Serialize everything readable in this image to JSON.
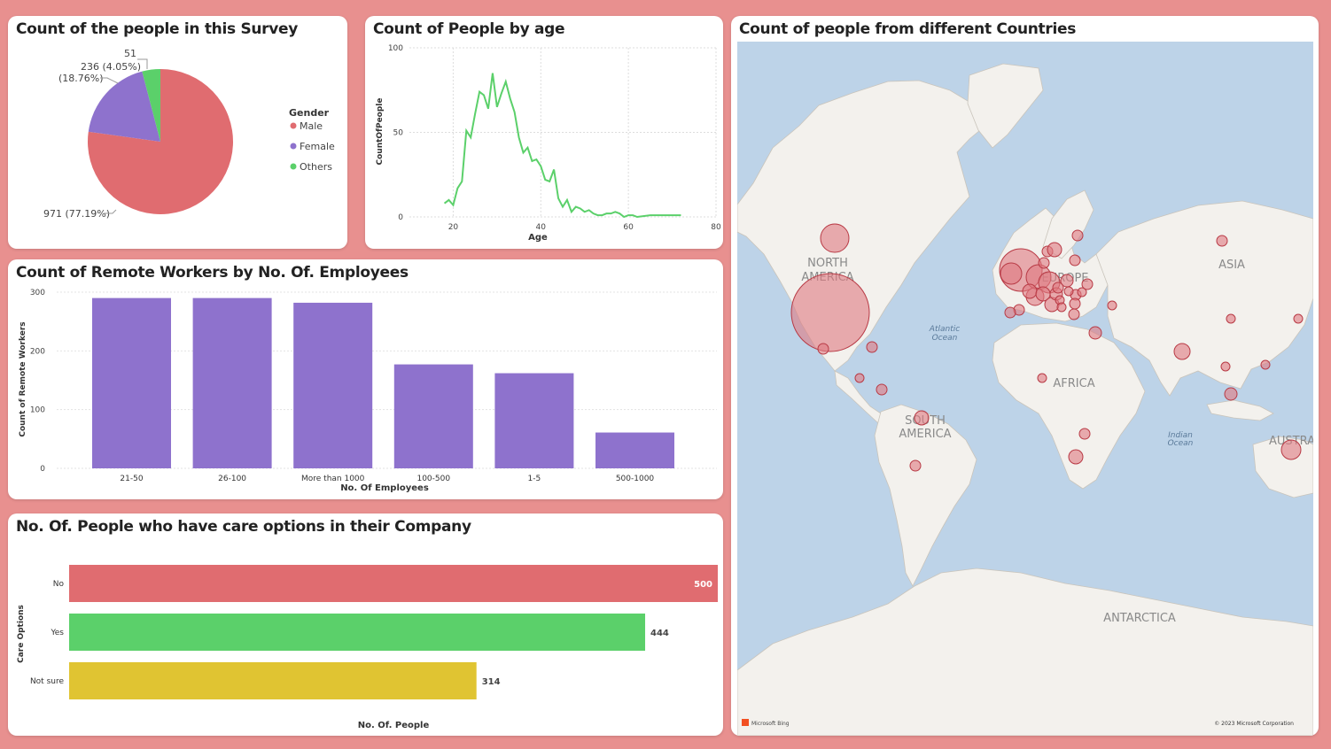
{
  "cards": {
    "pie": {
      "title": "Count of the people in this Survey"
    },
    "line": {
      "title": "Count of People by age"
    },
    "bars": {
      "title": "Count of Remote Workers by No. Of. Employees"
    },
    "care": {
      "title": "No. Of. People who have care options in their Company"
    },
    "map": {
      "title": "Count of people from different Countries"
    }
  },
  "colors": {
    "male": "#e06c70",
    "female": "#8e72cd",
    "others": "#5bd06a",
    "line": "#5bd06a",
    "bar": "#8e72cd",
    "no": "#e06c70",
    "yes": "#5bd06a",
    "not_sure": "#e0c432",
    "ocean": "#bdd3e8",
    "land": "#f3f1ed",
    "bubble": "#e07a80"
  },
  "chart_data": [
    {
      "type": "pie",
      "title": "Count of the people in this Survey",
      "legend_title": "Gender",
      "legend_position": "right",
      "slices": [
        {
          "name": "Male",
          "value": 971,
          "label": "971 (77.19%)"
        },
        {
          "name": "Female",
          "value": 236,
          "label": "236 (18.76%)"
        },
        {
          "name": "Others",
          "value": 51,
          "label": "51 (4.05%)"
        }
      ]
    },
    {
      "type": "line",
      "title": "Count of People by age",
      "xlabel": "Age",
      "ylabel": "CountOfPeople",
      "xlim": [
        10,
        80
      ],
      "ylim": [
        0,
        100
      ],
      "xticks": [
        20,
        40,
        60,
        80
      ],
      "yticks": [
        0,
        50,
        100
      ],
      "grid": true,
      "x": [
        18,
        19,
        20,
        21,
        22,
        23,
        24,
        25,
        26,
        27,
        28,
        29,
        30,
        31,
        32,
        33,
        34,
        35,
        36,
        37,
        38,
        39,
        40,
        41,
        42,
        43,
        44,
        45,
        46,
        47,
        48,
        49,
        50,
        51,
        52,
        53,
        54,
        55,
        56,
        57,
        58,
        59,
        60,
        61,
        62,
        65,
        72
      ],
      "y": [
        8,
        10,
        7,
        17,
        21,
        51,
        47,
        61,
        74,
        72,
        64,
        85,
        65,
        73,
        80,
        70,
        62,
        47,
        38,
        41,
        33,
        34,
        30,
        22,
        21,
        28,
        11,
        6,
        10,
        3,
        6,
        5,
        3,
        4,
        2,
        1,
        1,
        2,
        2,
        3,
        2,
        0,
        1,
        1,
        0,
        1,
        1
      ]
    },
    {
      "type": "bar",
      "title": "Count of Remote Workers by No. Of. Employees",
      "xlabel": "No. Of Employees",
      "ylabel": "Count of Remote Workers",
      "ylim": [
        0,
        300
      ],
      "yticks": [
        0,
        100,
        200,
        300
      ],
      "categories": [
        "21-50",
        "26-100",
        "More than 1000",
        "100-500",
        "1-5",
        "500-1000"
      ],
      "values": [
        290,
        290,
        282,
        177,
        162,
        61
      ]
    },
    {
      "type": "bar",
      "orientation": "horizontal",
      "title": "No. Of. People who have care options in their Company",
      "xlabel": "No. Of. People",
      "ylabel": "Care Options",
      "xlim": [
        0,
        500
      ],
      "categories": [
        "No",
        "Yes",
        "Not sure"
      ],
      "values": [
        500,
        444,
        314
      ],
      "value_labels": [
        "500",
        "444",
        "314"
      ]
    }
  ],
  "map": {
    "labels": {
      "north_america": [
        "NORTH",
        "AMERICA"
      ],
      "south_america": [
        "SOUTH",
        "AMERICA"
      ],
      "europe": "EUROPE",
      "africa": "AFRICA",
      "asia": "ASIA",
      "australia": "AUSTRA",
      "antarctica": "ANTARCTICA",
      "atlantic": [
        "Atlantic",
        "Ocean"
      ],
      "indian": [
        "Indian",
        "Ocean"
      ]
    },
    "attribution": {
      "bing": "Microsoft Bing",
      "copyright": "© 2023 Microsoft Corporation"
    }
  }
}
